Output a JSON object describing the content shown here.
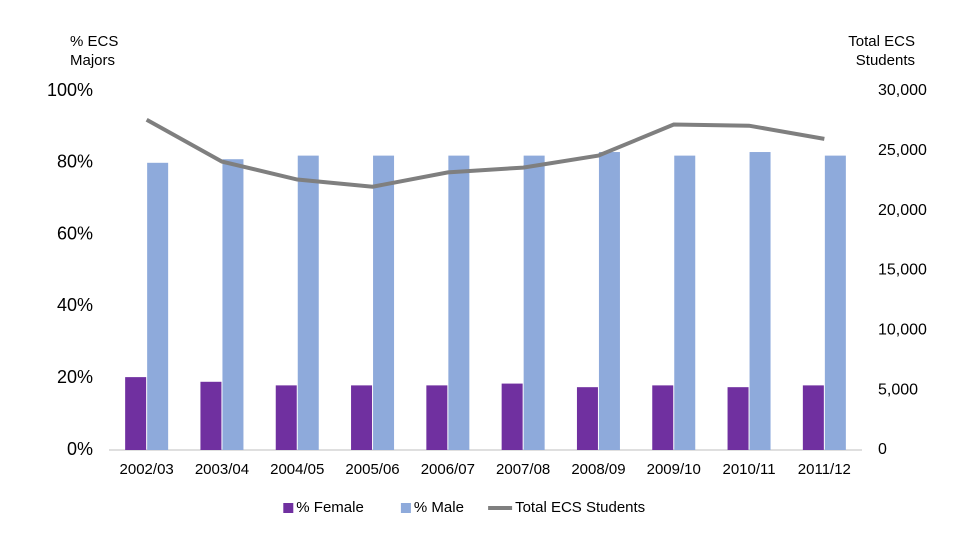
{
  "chart_data": {
    "type": "bar-line",
    "y_label": [
      "% ECS",
      "Majors"
    ],
    "y2_label": [
      "Total ECS",
      "Students"
    ],
    "categories": [
      "2002/03",
      "2003/04",
      "2004/05",
      "2005/06",
      "2006/07",
      "2007/08",
      "2008/09",
      "2009/10",
      "2010/11",
      "2011/12"
    ],
    "series": [
      {
        "name": "% Female",
        "type": "bar",
        "color": "#7030a0",
        "values": [
          20.3,
          19,
          18,
          18,
          18,
          18.5,
          17.5,
          18,
          17.5,
          18
        ]
      },
      {
        "name": "% Male",
        "type": "bar",
        "color": "#8eaadb",
        "values": [
          80,
          81,
          82,
          82,
          82,
          82,
          83,
          82,
          83,
          82
        ]
      },
      {
        "name": "Total ECS Students",
        "type": "line",
        "axis": "y2",
        "color": "#7f7f7f",
        "values": [
          27600,
          24100,
          22600,
          22000,
          23200,
          23600,
          24600,
          27200,
          27100,
          26000
        ]
      }
    ],
    "ylim": [
      0,
      100
    ],
    "yticks": [
      {
        "value": 0,
        "label": "0%"
      },
      {
        "value": 20,
        "label": "20%"
      },
      {
        "value": 40,
        "label": "40%"
      },
      {
        "value": 60,
        "label": "60%"
      },
      {
        "value": 80,
        "label": "80%"
      },
      {
        "value": 100,
        "label": "100%"
      }
    ],
    "y2lim": [
      0,
      30000
    ],
    "y2ticks": [
      0,
      {
        "value": 5000,
        "label": "5,000"
      },
      {
        "value": 10000,
        "label": "10,000"
      },
      {
        "value": 15000,
        "label": "15,000"
      },
      {
        "value": 20000,
        "label": "20,000"
      },
      {
        "value": 25000,
        "label": "25,000"
      },
      {
        "value": 30000,
        "label": "30,000"
      }
    ],
    "grid": false,
    "legend": "bottom"
  }
}
